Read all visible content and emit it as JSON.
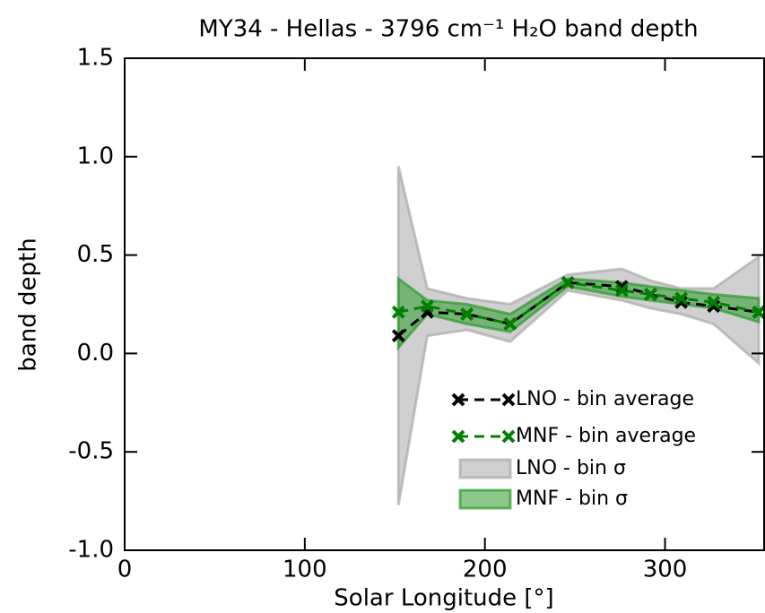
{
  "chart_data": {
    "type": "line",
    "title": "MY34 - Hellas - 3796 cm⁻¹ H₂O band depth",
    "x_label": "Solar Longitude [°]",
    "y_label": "band depth",
    "xlim": [
      0,
      355
    ],
    "ylim": [
      -1,
      1.5
    ],
    "xticks": [
      0,
      100,
      200,
      300
    ],
    "yticks": [
      {
        "value": -1,
        "label": "-1.0"
      },
      -0.5,
      {
        "value": 0,
        "label": "0.0"
      },
      0.5,
      {
        "value": 1,
        "label": "1.0"
      },
      1.5
    ],
    "x": [
      152,
      168,
      190,
      214,
      246,
      276,
      292,
      309,
      327,
      352
    ],
    "series": [
      {
        "name": "LNO - bin average",
        "color": "#000000",
        "values": [
          0.09,
          0.21,
          0.2,
          0.15,
          0.36,
          0.34,
          0.3,
          0.26,
          0.24,
          0.21
        ]
      },
      {
        "name": "MNF - bin average",
        "color": "#008000",
        "values": [
          0.21,
          0.24,
          0.2,
          0.15,
          0.36,
          0.32,
          0.3,
          0.28,
          0.26,
          0.21
        ]
      }
    ],
    "bands": [
      {
        "name": "LNO - bin σ",
        "color": "#a9a9a9",
        "upper": [
          0.95,
          0.33,
          0.28,
          0.25,
          0.4,
          0.43,
          0.37,
          0.33,
          0.33,
          0.49
        ],
        "lower": [
          -0.77,
          0.09,
          0.12,
          0.06,
          0.32,
          0.27,
          0.23,
          0.2,
          0.15,
          -0.05
        ]
      },
      {
        "name": "MNF - bin σ",
        "color": "#2e9a2e",
        "upper": [
          0.38,
          0.27,
          0.25,
          0.2,
          0.38,
          0.36,
          0.34,
          0.32,
          0.3,
          0.28
        ],
        "lower": [
          0.03,
          0.2,
          0.15,
          0.11,
          0.34,
          0.29,
          0.27,
          0.25,
          0.23,
          0.16
        ]
      }
    ],
    "legend": "lower right"
  }
}
